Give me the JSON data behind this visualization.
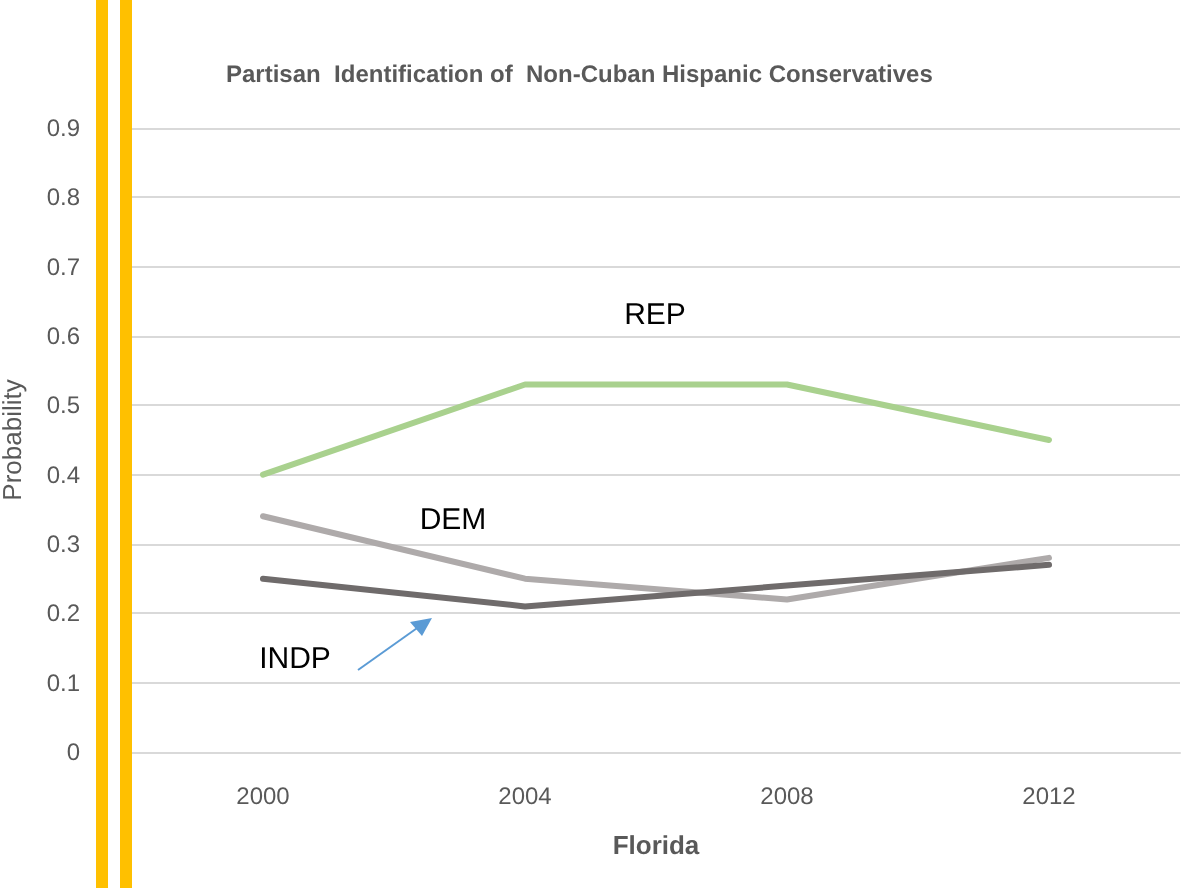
{
  "chart_data": {
    "type": "line",
    "title": "Partisan  Identification of  Non-Cuban Hispanic Conservatives",
    "xlabel": "Florida",
    "ylabel": "Probability",
    "categories": [
      "2000",
      "2004",
      "2008",
      "2012"
    ],
    "ylim": [
      0,
      0.9
    ],
    "yticks": [
      0,
      0.1,
      0.2,
      0.3,
      0.4,
      0.5,
      0.6,
      0.7,
      0.8,
      0.9
    ],
    "grid": "y",
    "legend": false,
    "marker": "none",
    "line_style": "solid",
    "series": [
      {
        "name": "REP",
        "color": "#a9d18e",
        "values": [
          0.4,
          0.53,
          0.53,
          0.45
        ]
      },
      {
        "name": "DEM",
        "color": "#aeaaaa",
        "values": [
          0.34,
          0.25,
          0.22,
          0.28
        ]
      },
      {
        "name": "INDP",
        "color": "#6f6b6b",
        "values": [
          0.25,
          0.21,
          0.24,
          0.27
        ]
      }
    ]
  }
}
